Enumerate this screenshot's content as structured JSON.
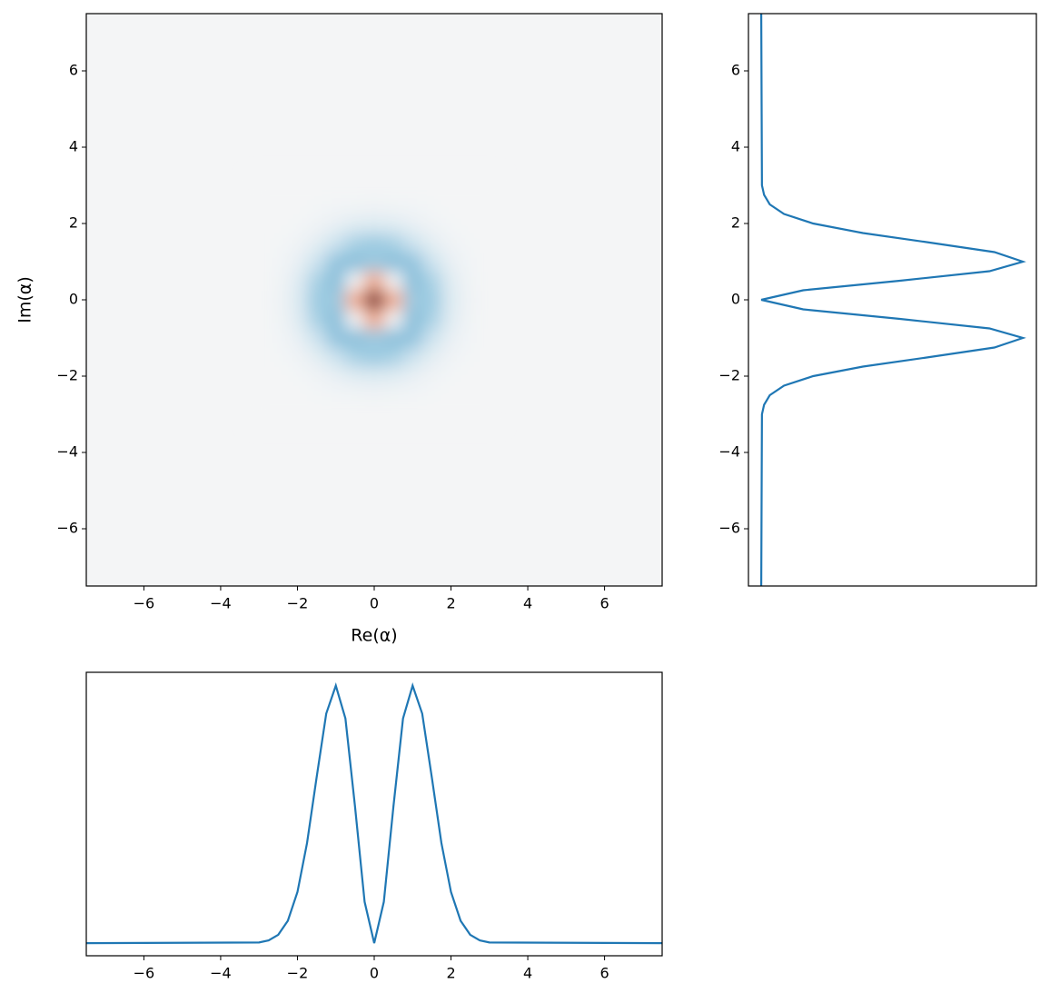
{
  "chart_data": [
    {
      "type": "heatmap",
      "xlabel": "Re(α)",
      "ylabel": "Im(α)",
      "x": [
        -3,
        -2.5,
        -2,
        -1.5,
        -1,
        -0.5,
        0,
        0.5,
        1,
        1.5,
        2,
        2.5,
        3
      ],
      "y": [
        -3,
        -2.5,
        -2,
        -1.5,
        -1,
        -0.5,
        0,
        0.5,
        1,
        1.5,
        2,
        2.5,
        3
      ],
      "z": [
        [
          0,
          0,
          0,
          0.001,
          0.001,
          0.002,
          0.002,
          0.002,
          0.001,
          0.001,
          0,
          0,
          0
        ],
        [
          0,
          0,
          0.001,
          0.003,
          0.01,
          0.018,
          0.022,
          0.018,
          0.01,
          0.003,
          0.001,
          0,
          0
        ],
        [
          0,
          0.001,
          0.005,
          0.022,
          0.061,
          0.107,
          0.128,
          0.107,
          0.061,
          0.022,
          0.005,
          0.001,
          0
        ],
        [
          0,
          0.003,
          0.022,
          0.089,
          0.213,
          0.328,
          0.369,
          0.328,
          0.213,
          0.089,
          0.022,
          0.003,
          0
        ],
        [
          0.001,
          0.01,
          0.061,
          0.213,
          0.406,
          0.43,
          0.368,
          0.43,
          0.406,
          0.213,
          0.061,
          0.01,
          0.001
        ],
        [
          0.002,
          0.018,
          0.107,
          0.328,
          0.43,
          0,
          -0.389,
          0,
          0.43,
          0.328,
          0.107,
          0.018,
          0.002
        ],
        [
          0.002,
          0.022,
          0.128,
          0.369,
          0.368,
          -0.389,
          -1,
          -0.389,
          0.368,
          0.369,
          0.128,
          0.022,
          0.002
        ],
        [
          0.002,
          0.018,
          0.107,
          0.328,
          0.43,
          0,
          -0.389,
          0,
          0.43,
          0.328,
          0.107,
          0.018,
          0.002
        ],
        [
          0.001,
          0.01,
          0.061,
          0.213,
          0.406,
          0.43,
          0.368,
          0.43,
          0.406,
          0.213,
          0.061,
          0.01,
          0.001
        ],
        [
          0,
          0.003,
          0.022,
          0.089,
          0.213,
          0.328,
          0.369,
          0.328,
          0.213,
          0.089,
          0.022,
          0.003,
          0
        ],
        [
          0,
          0.001,
          0.005,
          0.022,
          0.061,
          0.107,
          0.128,
          0.107,
          0.061,
          0.022,
          0.005,
          0.001,
          0
        ],
        [
          0,
          0,
          0.001,
          0.003,
          0.01,
          0.018,
          0.022,
          0.018,
          0.01,
          0.003,
          0.001,
          0,
          0
        ],
        [
          0,
          0,
          0,
          0.001,
          0.001,
          0.002,
          0.002,
          0.002,
          0.001,
          0.001,
          0,
          0,
          0
        ]
      ],
      "zlim": [
        -1,
        1
      ],
      "colormap": [
        "#67001f",
        "#b2182b",
        "#d6604d",
        "#f4a582",
        "#fddbc7",
        "#f4f5f6",
        "#d1e5f0",
        "#92c5de",
        "#4393c3",
        "#2166ac",
        "#053061"
      ],
      "xlim": [
        -7.5,
        7.5
      ],
      "ylim": [
        -7.5,
        7.5
      ],
      "xticks": [
        {
          "value": -6,
          "label": "−6"
        },
        {
          "value": -4,
          "label": "−4"
        },
        {
          "value": -2,
          "label": "−2"
        },
        0,
        2,
        4,
        6
      ],
      "yticks": [
        {
          "value": -6,
          "label": "−6"
        },
        {
          "value": -4,
          "label": "−4"
        },
        {
          "value": -2,
          "label": "−2"
        },
        0,
        2,
        4,
        6
      ]
    },
    {
      "type": "line",
      "orientation": "vertical",
      "color": "#1f77b4",
      "y": [
        -7.5,
        -3,
        -2.75,
        -2.5,
        -2.25,
        -2,
        -1.75,
        -1.5,
        -1.25,
        -1,
        -0.75,
        -0.5,
        -0.25,
        0,
        0.25,
        0.5,
        0.75,
        1,
        1.25,
        1.5,
        1.75,
        2,
        2.25,
        2.5,
        2.75,
        3,
        7.5
      ],
      "values": [
        0,
        0.001,
        0.004,
        0.012,
        0.032,
        0.073,
        0.143,
        0.237,
        0.328,
        0.368,
        0.321,
        0.195,
        0.059,
        0,
        0.059,
        0.195,
        0.321,
        0.368,
        0.328,
        0.237,
        0.143,
        0.073,
        0.032,
        0.012,
        0.004,
        0.001,
        0
      ],
      "ylim": [
        -7.5,
        7.5
      ],
      "xlim": [
        -0.018,
        0.387
      ],
      "yticks": [
        {
          "value": -6,
          "label": "−6"
        },
        {
          "value": -4,
          "label": "−4"
        },
        {
          "value": -2,
          "label": "−2"
        },
        0,
        2,
        4,
        6
      ]
    },
    {
      "type": "line",
      "color": "#1f77b4",
      "x": [
        -7.5,
        -3,
        -2.75,
        -2.5,
        -2.25,
        -2,
        -1.75,
        -1.5,
        -1.25,
        -1,
        -0.75,
        -0.5,
        -0.25,
        0,
        0.25,
        0.5,
        0.75,
        1,
        1.25,
        1.5,
        1.75,
        2,
        2.25,
        2.5,
        2.75,
        3,
        7.5
      ],
      "values": [
        0,
        0.001,
        0.004,
        0.012,
        0.032,
        0.073,
        0.143,
        0.237,
        0.328,
        0.368,
        0.321,
        0.195,
        0.059,
        0,
        0.059,
        0.195,
        0.321,
        0.368,
        0.328,
        0.237,
        0.143,
        0.073,
        0.032,
        0.012,
        0.004,
        0.001,
        0
      ],
      "xlim": [
        -7.5,
        7.5
      ],
      "ylim": [
        -0.018,
        0.387
      ],
      "xticks": [
        {
          "value": -6,
          "label": "−6"
        },
        {
          "value": -4,
          "label": "−4"
        },
        {
          "value": -2,
          "label": "−2"
        },
        0,
        2,
        4,
        6
      ]
    }
  ]
}
